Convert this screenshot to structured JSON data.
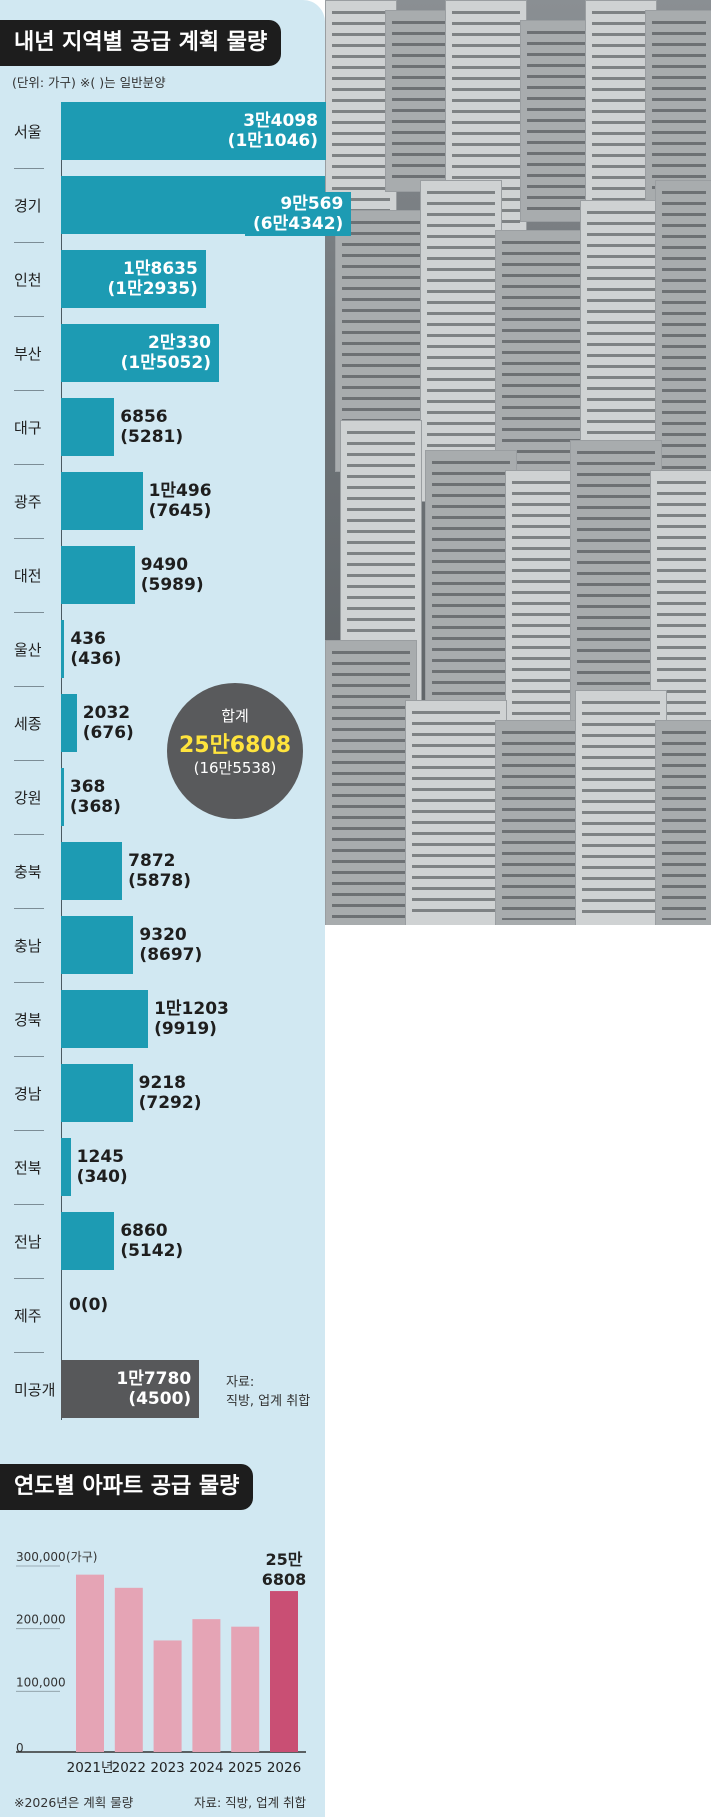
{
  "chart_data": [
    {
      "type": "bar",
      "orientation": "horizontal",
      "title": "내년 지역별 공급 계획 물량",
      "unit_note": "(단위: 가구) ※( )는 일반분양",
      "categories": [
        "서울",
        "경기",
        "인천",
        "부산",
        "대구",
        "광주",
        "대전",
        "울산",
        "세종",
        "강원",
        "충북",
        "충남",
        "경북",
        "경남",
        "전북",
        "전남",
        "제주",
        "미공개"
      ],
      "series": [
        {
          "name": "공급 계획 물량",
          "values": [
            34098,
            90569,
            18635,
            20330,
            6856,
            10496,
            9490,
            436,
            2032,
            368,
            7872,
            9320,
            11203,
            9218,
            1245,
            6860,
            0,
            17780
          ]
        },
        {
          "name": "일반분양",
          "values": [
            11046,
            64342,
            12935,
            15052,
            5281,
            7645,
            5989,
            436,
            676,
            368,
            5878,
            8697,
            9919,
            7292,
            340,
            5142,
            0,
            4500
          ]
        }
      ],
      "value_labels": [
        {
          "main": "3만4098",
          "sub": "(1만1046)"
        },
        {
          "main": "9만569",
          "sub": "(6만4342)"
        },
        {
          "main": "1만8635",
          "sub": "(1만2935)"
        },
        {
          "main": "2만330",
          "sub": "(1만5052)"
        },
        {
          "main": "6856",
          "sub": "(5281)"
        },
        {
          "main": "1만496",
          "sub": "(7645)"
        },
        {
          "main": "9490",
          "sub": "(5989)"
        },
        {
          "main": "436",
          "sub": "(436)"
        },
        {
          "main": "2032",
          "sub": "(676)"
        },
        {
          "main": "368",
          "sub": "(368)"
        },
        {
          "main": "7872",
          "sub": "(5878)"
        },
        {
          "main": "9320",
          "sub": "(8697)"
        },
        {
          "main": "1만1203",
          "sub": "(9919)"
        },
        {
          "main": "9218",
          "sub": "(7292)"
        },
        {
          "main": "1245",
          "sub": "(340)"
        },
        {
          "main": "6860",
          "sub": "(5142)"
        },
        {
          "main": "0(0)",
          "sub": ""
        },
        {
          "main": "1만7780",
          "sub": "(4500)"
        }
      ],
      "total": {
        "label": "합계",
        "value": "25만6808",
        "sub": "(16만5538)"
      },
      "source": [
        "자료:",
        "직방, 업계 취합"
      ],
      "colors": {
        "bar": "#1d9bb3",
        "unknown": "#57585a",
        "total_value": "#ffe43d"
      }
    },
    {
      "type": "bar",
      "title": "연도별 아파트 공급 물량",
      "categories": [
        "2021년",
        "2022",
        "2023",
        "2024",
        "2025",
        "2026"
      ],
      "values": [
        283000,
        262000,
        178000,
        212000,
        200000,
        256808
      ],
      "ylim": [
        0,
        300000
      ],
      "y_ticks": [
        "300,000",
        "200,000",
        "100,000",
        "0"
      ],
      "y_unit": "(가구)",
      "highlight_label": [
        "25만",
        "6808"
      ],
      "colors": {
        "bar": "#e5a4b5",
        "highlight": "#c94f74"
      }
    }
  ],
  "footnote": "※2026년은 계획 물량",
  "footnote_source": "자료: 직방, 업계 취합"
}
